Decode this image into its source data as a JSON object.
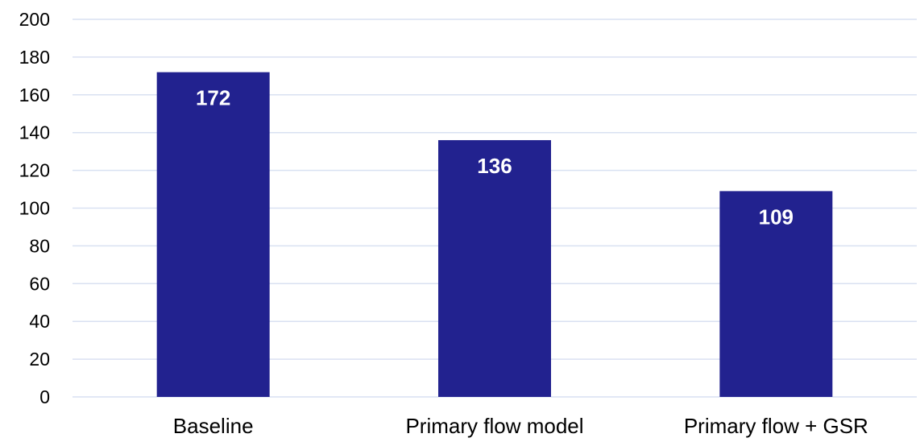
{
  "chart_data": {
    "type": "bar",
    "categories": [
      "Baseline",
      "Primary flow model",
      "Primary flow + GSR"
    ],
    "values": [
      172,
      136,
      109
    ],
    "data_labels": [
      "172",
      "136",
      "109"
    ],
    "title": "",
    "xlabel": "",
    "ylabel": "",
    "ylim": [
      0,
      200
    ],
    "yticks": [
      0,
      20,
      40,
      60,
      80,
      100,
      120,
      140,
      160,
      180,
      200
    ],
    "grid": true,
    "legend": "none",
    "colors": {
      "bar": "#22228f",
      "grid": "#d9e1f2",
      "data_label": "#ffffff"
    }
  }
}
